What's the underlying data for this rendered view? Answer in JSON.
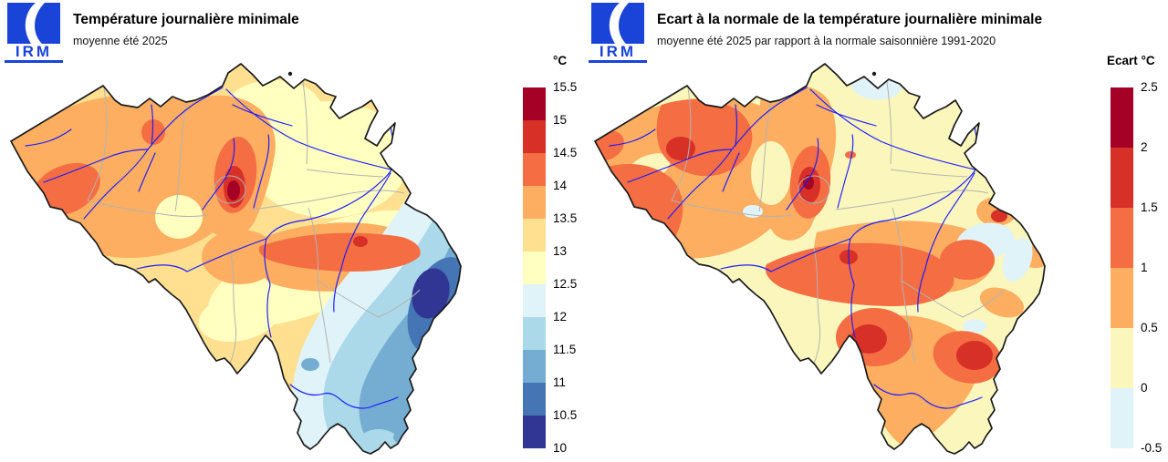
{
  "brand": {
    "logo_text": "IRM",
    "logo_color": "#1a43d7"
  },
  "map_style": {
    "border_color": "#1a1a1a",
    "river_color": "#1a1aff",
    "province_color": "#b3b3b3",
    "background": "#ffffff"
  },
  "panels": [
    {
      "title": "Température journalière minimale",
      "subtitle": "moyenne été 2025",
      "legend": {
        "unit_label": "°C",
        "tick_labels": [
          "15.5",
          "15",
          "14.5",
          "14",
          "13.5",
          "13",
          "12.5",
          "12",
          "11.5",
          "11",
          "10.5",
          "10"
        ],
        "colors": [
          "#a50026",
          "#d73027",
          "#f46d43",
          "#fdae61",
          "#fee090",
          "#ffffbf",
          "#e0f3f8",
          "#abd9e9",
          "#74add1",
          "#4575b4",
          "#313695"
        ]
      }
    },
    {
      "title": "Ecart à la normale de la température journalière minimale",
      "subtitle": "moyenne été 2025 par rapport à la normale saisonnière 1991-2020",
      "legend": {
        "unit_label": "Ecart °C",
        "tick_labels": [
          "2.5",
          "2",
          "1.5",
          "1",
          "0.5",
          "0",
          "-0.5"
        ],
        "colors": [
          "#a50026",
          "#d73027",
          "#f46d43",
          "#fdae61",
          "#fbf7bc",
          "#e0f3f8"
        ]
      }
    }
  ]
}
